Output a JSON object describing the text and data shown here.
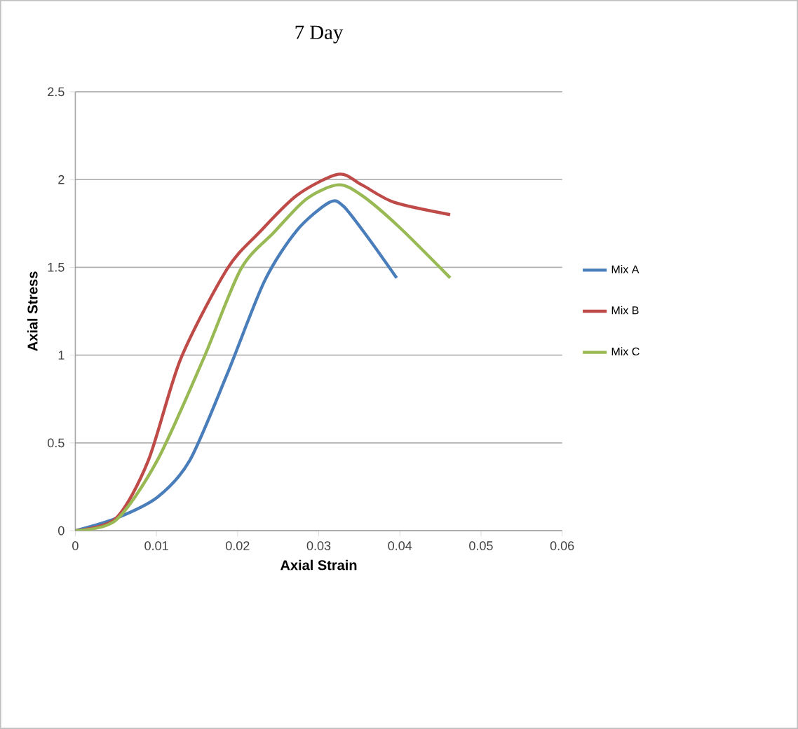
{
  "chart_data": {
    "type": "line",
    "title": "7 Day",
    "xlabel": "Axial Strain",
    "ylabel": "Axial Stress",
    "xlim": [
      0,
      0.06
    ],
    "xticks": [
      0,
      0.01,
      0.02,
      0.03,
      0.04,
      0.05,
      0.06
    ],
    "ylim": [
      0,
      2.5
    ],
    "yticks": [
      0,
      0.5,
      1,
      1.5,
      2,
      2.5
    ],
    "grid": "y",
    "legend": "right",
    "marker": "none",
    "line_style": "solid",
    "series": [
      {
        "name": "Mix A",
        "color": "#4a7ebb",
        "x": [
          0,
          0.005,
          0.0101,
          0.0141,
          0.0187,
          0.0233,
          0.0273,
          0.0313,
          0.033,
          0.0359,
          0.0396
        ],
        "values": [
          0,
          0.07,
          0.19,
          0.4,
          0.89,
          1.42,
          1.71,
          1.87,
          1.85,
          1.68,
          1.44
        ]
      },
      {
        "name": "Mix B",
        "color": "#be4b48",
        "x": [
          0,
          0.005,
          0.009,
          0.013,
          0.0187,
          0.0227,
          0.0273,
          0.0324,
          0.0353,
          0.0393,
          0.0462
        ],
        "values": [
          0,
          0.07,
          0.4,
          0.98,
          1.49,
          1.7,
          1.91,
          2.03,
          1.97,
          1.87,
          1.8
        ]
      },
      {
        "name": "Mix C",
        "color": "#98b954",
        "x": [
          0,
          0.005,
          0.0101,
          0.0158,
          0.0204,
          0.0245,
          0.0285,
          0.0324,
          0.0353,
          0.0399,
          0.0462
        ],
        "values": [
          0,
          0.06,
          0.4,
          0.98,
          1.49,
          1.7,
          1.89,
          1.97,
          1.91,
          1.73,
          1.44
        ]
      }
    ]
  }
}
